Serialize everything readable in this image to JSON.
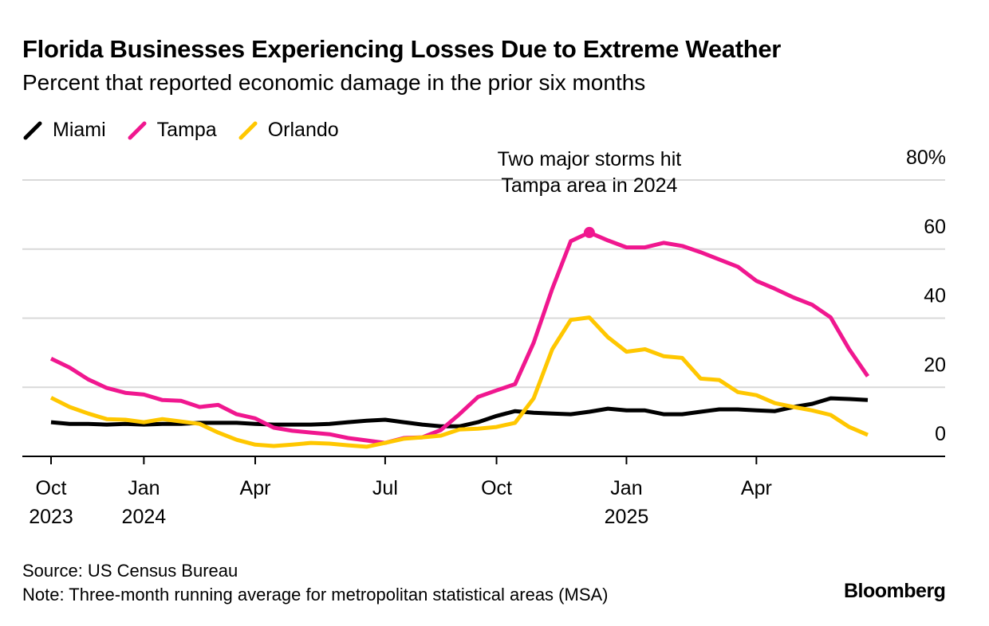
{
  "chart_data": {
    "type": "line",
    "title": "Florida Businesses Experiencing Losses Due to Extreme Weather",
    "subtitle": "Percent that reported economic damage in the prior six months",
    "annotation": "Two major storms hit Tampa area in 2024",
    "source": "Source: US Census Bureau",
    "note": "Note: Three-month running average for metropolitan statistical areas (MSA)",
    "brand": "Bloomberg",
    "categories": [
      "Oct 2023",
      null,
      null,
      null,
      null,
      "Jan 2024",
      null,
      null,
      null,
      null,
      null,
      "Apr",
      null,
      null,
      null,
      null,
      null,
      null,
      "Jul",
      null,
      null,
      null,
      null,
      null,
      "Oct",
      null,
      null,
      null,
      null,
      null,
      null,
      "Jan 2025",
      null,
      null,
      null,
      null,
      null,
      null,
      "Apr",
      null,
      null,
      null,
      null,
      null,
      null
    ],
    "series": [
      {
        "name": "Miami",
        "color": "#000000",
        "values": [
          9.9,
          9.4,
          9.4,
          9.2,
          9.4,
          9.2,
          9.4,
          9.4,
          9.7,
          9.7,
          9.7,
          9.4,
          9.2,
          9.2,
          9.2,
          9.4,
          9.9,
          10.3,
          10.6,
          9.9,
          9.2,
          8.7,
          8.7,
          9.9,
          11.7,
          13.1,
          12.6,
          12.4,
          12.2,
          12.9,
          13.8,
          13.3,
          13.3,
          12.2,
          12.2,
          12.9,
          13.6,
          13.6,
          13.3,
          13.1,
          14.3,
          15.2,
          16.8,
          16.6,
          16.3
        ]
      },
      {
        "name": "Tampa",
        "color": "#f0178f",
        "values": [
          28.3,
          25.7,
          22.3,
          19.8,
          18.4,
          17.9,
          16.3,
          16.1,
          14.3,
          14.9,
          12.2,
          11,
          8.3,
          7.4,
          6.9,
          6.4,
          5.3,
          4.6,
          3.9,
          5.3,
          5.5,
          7.6,
          12.2,
          17.2,
          19.1,
          20.9,
          32.9,
          48.5,
          62.3,
          64.8,
          62.5,
          60.5,
          60.5,
          61.8,
          60.9,
          59.1,
          57,
          54.9,
          50.8,
          48.5,
          46,
          43.9,
          40.2,
          31,
          23.2
        ]
      },
      {
        "name": "Orlando",
        "color": "#ffc700",
        "values": [
          17,
          14.3,
          12.4,
          10.8,
          10.6,
          9.9,
          10.8,
          10.1,
          9.4,
          6.9,
          4.8,
          3.4,
          3,
          3.4,
          3.9,
          3.7,
          3.2,
          2.8,
          3.9,
          5.1,
          5.5,
          6,
          7.8,
          8,
          8.5,
          9.7,
          16.8,
          31,
          39.5,
          40.2,
          34.5,
          30.3,
          31,
          29,
          28.5,
          22.5,
          22.1,
          18.6,
          17.7,
          15.4,
          14.3,
          13.3,
          12,
          8.5,
          6.2
        ]
      }
    ],
    "ylim": [
      0,
      80
    ],
    "yticks": [
      0,
      20,
      40,
      60,
      {
        "value": 80,
        "label": "80%"
      }
    ],
    "grid": true,
    "annotation_point": {
      "series": 1,
      "index": 29
    }
  }
}
